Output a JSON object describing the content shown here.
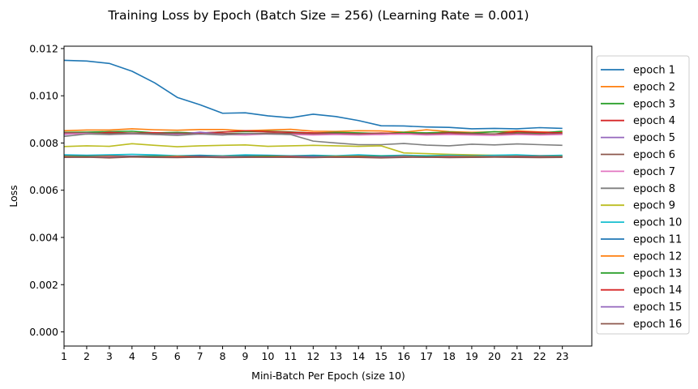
{
  "chart_data": {
    "type": "line",
    "title": "Training Loss by Epoch (Batch Size = 256) (Learning Rate = 0.001)",
    "xlabel": "Mini-Batch Per Epoch (size 10)",
    "ylabel": "Loss",
    "xlim": [
      1,
      24.3
    ],
    "ylim": [
      -0.0006,
      0.0121
    ],
    "xticks": [
      1,
      2,
      3,
      4,
      5,
      6,
      7,
      8,
      9,
      10,
      11,
      12,
      13,
      14,
      15,
      16,
      17,
      18,
      19,
      20,
      21,
      22,
      23
    ],
    "xtick_labels": [
      "1",
      "2",
      "3",
      "4",
      "5",
      "6",
      "7",
      "8",
      "9",
      "10",
      "11",
      "12",
      "13",
      "14",
      "15",
      "16",
      "17",
      "18",
      "19",
      "20",
      "21",
      "22",
      "23"
    ],
    "yticks": [
      0,
      0.002,
      0.004,
      0.006,
      0.008,
      0.01,
      0.012
    ],
    "ytick_labels": [
      "0.000",
      "0.002",
      "0.004",
      "0.006",
      "0.008",
      "0.010",
      "0.012"
    ],
    "grid": false,
    "legend_position": "outside-right",
    "x": [
      1,
      2,
      3,
      4,
      5,
      6,
      7,
      8,
      9,
      10,
      11,
      12,
      13,
      14,
      15,
      16,
      17,
      18,
      19,
      20,
      21,
      22,
      23
    ],
    "series": [
      {
        "name": "epoch 1",
        "color": "#1f77b4",
        "values": [
          0.0115,
          0.01147,
          0.01137,
          0.01104,
          0.01055,
          0.00993,
          0.00962,
          0.00926,
          0.00928,
          0.00915,
          0.00907,
          0.00922,
          0.00912,
          0.00895,
          0.00873,
          0.00872,
          0.00868,
          0.00866,
          0.0086,
          0.00862,
          0.0086,
          0.00865,
          0.00862
        ]
      },
      {
        "name": "epoch 2",
        "color": "#ff7f0e",
        "values": [
          0.00852,
          0.00855,
          0.00855,
          0.0086,
          0.00856,
          0.00854,
          0.00857,
          0.00857,
          0.00852,
          0.00855,
          0.00858,
          0.0085,
          0.00849,
          0.00852,
          0.00851,
          0.00846,
          0.00856,
          0.00848,
          0.00845,
          0.00847,
          0.00851,
          0.00847,
          0.00845
        ]
      },
      {
        "name": "epoch 3",
        "color": "#2ca02c",
        "values": [
          0.00845,
          0.00846,
          0.00848,
          0.0085,
          0.00843,
          0.00845,
          0.00842,
          0.00847,
          0.00848,
          0.0085,
          0.00847,
          0.00842,
          0.00845,
          0.00843,
          0.0084,
          0.00845,
          0.00843,
          0.00846,
          0.00842,
          0.00848,
          0.00843,
          0.00842,
          0.0085
        ]
      },
      {
        "name": "epoch 4",
        "color": "#d62728",
        "values": [
          0.0084,
          0.00838,
          0.00845,
          0.00842,
          0.00844,
          0.0084,
          0.00843,
          0.00846,
          0.00852,
          0.00848,
          0.00845,
          0.00843,
          0.00841,
          0.00839,
          0.00842,
          0.0084,
          0.00838,
          0.00843,
          0.0084,
          0.00838,
          0.00848,
          0.00845,
          0.00843
        ]
      },
      {
        "name": "epoch 5",
        "color": "#9467bd",
        "values": [
          0.00836,
          0.00843,
          0.00838,
          0.0084,
          0.00838,
          0.00836,
          0.00846,
          0.00838,
          0.00836,
          0.0084,
          0.00837,
          0.00838,
          0.0084,
          0.00838,
          0.00836,
          0.00838,
          0.00837,
          0.00839,
          0.00836,
          0.00838,
          0.0084,
          0.00838,
          0.00838
        ]
      },
      {
        "name": "epoch 6",
        "color": "#8c564b",
        "values": [
          0.00844,
          0.00842,
          0.0084,
          0.00842,
          0.0084,
          0.00842,
          0.00838,
          0.0084,
          0.0084,
          0.00842,
          0.0084,
          0.00838,
          0.0084,
          0.00838,
          0.0084,
          0.00838,
          0.0084,
          0.00838,
          0.0084,
          0.00838,
          0.0084,
          0.00838,
          0.0084
        ]
      },
      {
        "name": "epoch 7",
        "color": "#e377c2",
        "values": [
          0.00838,
          0.0084,
          0.00836,
          0.00838,
          0.00836,
          0.00834,
          0.00838,
          0.00836,
          0.00834,
          0.00838,
          0.00836,
          0.00834,
          0.00836,
          0.00834,
          0.00836,
          0.00838,
          0.00834,
          0.00836,
          0.00834,
          0.00832,
          0.00836,
          0.00834,
          0.00836
        ]
      },
      {
        "name": "epoch 8",
        "color": "#7f7f7f",
        "values": [
          0.00828,
          0.00838,
          0.00836,
          0.0084,
          0.00836,
          0.00832,
          0.00838,
          0.00834,
          0.0084,
          0.00838,
          0.00836,
          0.00808,
          0.008,
          0.00793,
          0.00793,
          0.00798,
          0.00791,
          0.00788,
          0.00795,
          0.00792,
          0.00796,
          0.00793,
          0.0079
        ]
      },
      {
        "name": "epoch 9",
        "color": "#bcbd22",
        "values": [
          0.00785,
          0.00788,
          0.00786,
          0.00797,
          0.0079,
          0.00784,
          0.00788,
          0.0079,
          0.00792,
          0.00786,
          0.00788,
          0.0079,
          0.00788,
          0.00786,
          0.00788,
          0.00758,
          0.00755,
          0.00752,
          0.0075,
          0.00748,
          0.00748,
          0.00746,
          0.00746
        ]
      },
      {
        "name": "epoch 10",
        "color": "#17becf",
        "values": [
          0.0075,
          0.00748,
          0.0075,
          0.00752,
          0.0075,
          0.00746,
          0.00748,
          0.00746,
          0.0075,
          0.00748,
          0.00746,
          0.00748,
          0.00746,
          0.0075,
          0.00746,
          0.00748,
          0.00746,
          0.00748,
          0.00746,
          0.00748,
          0.0075,
          0.00746,
          0.00748
        ]
      },
      {
        "name": "epoch 11",
        "color": "#1f77b4",
        "values": [
          0.00746,
          0.00745,
          0.00746,
          0.00744,
          0.00745,
          0.00743,
          0.00746,
          0.00744,
          0.00745,
          0.00746,
          0.00744,
          0.00745,
          0.00743,
          0.00745,
          0.00744,
          0.00745,
          0.00743,
          0.00744,
          0.00745,
          0.00743,
          0.00744,
          0.00745,
          0.00744
        ]
      },
      {
        "name": "epoch 12",
        "color": "#ff7f0e",
        "values": [
          0.00744,
          0.00743,
          0.00744,
          0.00742,
          0.00743,
          0.00744,
          0.00742,
          0.00743,
          0.00742,
          0.00744,
          0.00743,
          0.00742,
          0.00743,
          0.00744,
          0.00742,
          0.00743,
          0.00742,
          0.00743,
          0.00744,
          0.00742,
          0.00743,
          0.00742,
          0.00743
        ]
      },
      {
        "name": "epoch 13",
        "color": "#2ca02c",
        "values": [
          0.00742,
          0.00743,
          0.00741,
          0.00742,
          0.00743,
          0.00741,
          0.00742,
          0.00741,
          0.00742,
          0.00743,
          0.00741,
          0.00742,
          0.00741,
          0.00742,
          0.00743,
          0.00741,
          0.00742,
          0.00741,
          0.00742,
          0.00741,
          0.00742,
          0.00741,
          0.00742
        ]
      },
      {
        "name": "epoch 14",
        "color": "#d62728",
        "values": [
          0.00741,
          0.0074,
          0.00741,
          0.00742,
          0.0074,
          0.00741,
          0.00742,
          0.0074,
          0.00741,
          0.0074,
          0.00742,
          0.00741,
          0.0074,
          0.00741,
          0.0074,
          0.00741,
          0.0074,
          0.00741,
          0.0074,
          0.00741,
          0.00742,
          0.0074,
          0.00741
        ]
      },
      {
        "name": "epoch 15",
        "color": "#9467bd",
        "values": [
          0.0074,
          0.00741,
          0.0074,
          0.00741,
          0.0074,
          0.00739,
          0.0074,
          0.00741,
          0.0074,
          0.00739,
          0.0074,
          0.00741,
          0.0074,
          0.00739,
          0.0074,
          0.00741,
          0.0074,
          0.00739,
          0.0074,
          0.00741,
          0.0074,
          0.00739,
          0.0074
        ]
      },
      {
        "name": "epoch 16",
        "color": "#8c564b",
        "values": [
          0.00739,
          0.0074,
          0.00737,
          0.00741,
          0.00739,
          0.00738,
          0.0074,
          0.00738,
          0.00739,
          0.0074,
          0.00739,
          0.00738,
          0.0074,
          0.00739,
          0.00737,
          0.00739,
          0.0074,
          0.00738,
          0.00739,
          0.0074,
          0.00739,
          0.00738,
          0.00739
        ]
      }
    ]
  }
}
